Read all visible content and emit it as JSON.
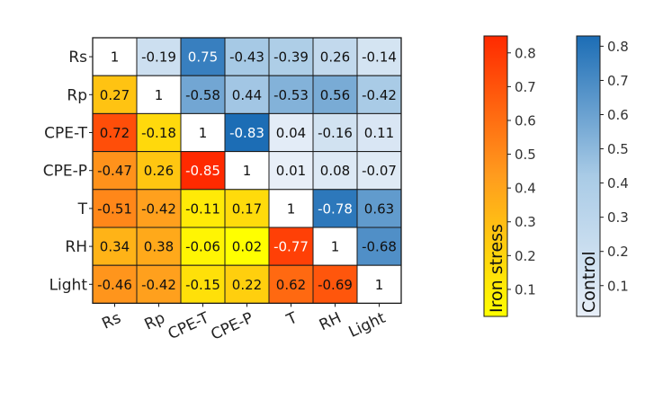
{
  "chart_data": {
    "type": "heatmap",
    "rows": [
      "Rs",
      "Rp",
      "CPE-T",
      "CPE-P",
      "T",
      "RH",
      "Light"
    ],
    "columns": [
      "Rs",
      "Rp",
      "CPE-T",
      "CPE-P",
      "T",
      "RH",
      "Light"
    ],
    "values": [
      [
        "1",
        "-0.19",
        "0.75",
        "-0.43",
        "-0.39",
        "0.26",
        "-0.14"
      ],
      [
        "0.27",
        "1",
        "-0.58",
        "0.44",
        "-0.53",
        "0.56",
        "-0.42"
      ],
      [
        "0.72",
        "-0.18",
        "1",
        "-0.83",
        "0.04",
        "-0.16",
        "0.11"
      ],
      [
        "-0.47",
        "0.26",
        "-0.85",
        "1",
        "0.01",
        "0.08",
        "-0.07"
      ],
      [
        "-0.51",
        "-0.42",
        "-0.11",
        "0.17",
        "1",
        "-0.78",
        "0.63"
      ],
      [
        "0.34",
        "0.38",
        "-0.06",
        "0.02",
        "-0.77",
        "1",
        "-0.68"
      ],
      [
        "-0.46",
        "-0.42",
        "-0.15",
        "0.22",
        "0.62",
        "-0.69",
        "1"
      ]
    ],
    "note_layout": "lower triangle = Iron stress (yellow-red scale, |r|); upper triangle = Control (blue scale, |r|); diagonal white",
    "colorbars": [
      {
        "title": "Iron stress",
        "range": [
          0.02,
          0.85
        ],
        "ticks": [
          "0.1",
          "0.2",
          "0.3",
          "0.4",
          "0.5",
          "0.6",
          "0.7",
          "0.8"
        ],
        "colors": [
          "#ffff00",
          "#ff9c1e",
          "#ff2a00"
        ]
      },
      {
        "title": "Control",
        "range": [
          0.01,
          0.83
        ],
        "ticks": [
          "0.1",
          "0.2",
          "0.3",
          "0.4",
          "0.5",
          "0.6",
          "0.7",
          "0.8"
        ],
        "colors": [
          "#e8eff8",
          "#a9cbe6",
          "#1c6db5"
        ]
      }
    ],
    "diagonal_color": "#ffffff",
    "grid": true
  }
}
